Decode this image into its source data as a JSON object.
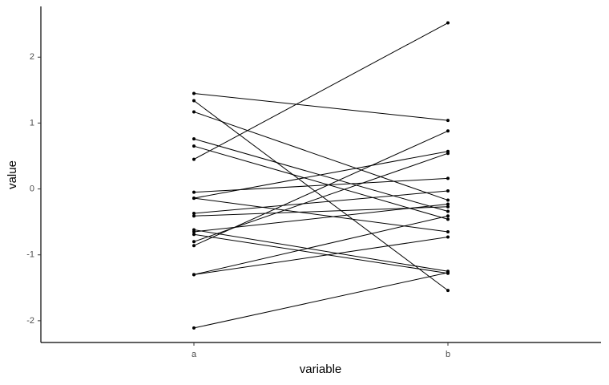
{
  "chart_data": {
    "type": "slope",
    "x_label": "variable",
    "y_label": "value",
    "categories": [
      "a",
      "b"
    ],
    "color": "#000000",
    "ylim": [
      -2.33,
      2.77
    ],
    "yticks": [
      -2,
      -1,
      0,
      1,
      2
    ],
    "grid": false,
    "series": [
      {
        "values": [
          1.45,
          1.04
        ]
      },
      {
        "values": [
          1.34,
          -1.54
        ]
      },
      {
        "values": [
          1.17,
          -0.17
        ]
      },
      {
        "values": [
          0.76,
          -0.34
        ]
      },
      {
        "values": [
          0.65,
          -0.46
        ]
      },
      {
        "values": [
          0.45,
          2.52
        ]
      },
      {
        "values": [
          -0.05,
          0.16
        ]
      },
      {
        "values": [
          -0.14,
          0.57
        ]
      },
      {
        "values": [
          -0.14,
          -0.65
        ]
      },
      {
        "values": [
          -0.37,
          -0.03
        ]
      },
      {
        "values": [
          -0.41,
          -0.27
        ]
      },
      {
        "values": [
          -0.62,
          -1.25
        ]
      },
      {
        "values": [
          -0.65,
          -0.23
        ]
      },
      {
        "values": [
          -0.69,
          -1.28
        ]
      },
      {
        "values": [
          -0.8,
          0.54
        ]
      },
      {
        "values": [
          -0.86,
          0.88
        ]
      },
      {
        "values": [
          -1.3,
          -0.41
        ]
      },
      {
        "values": [
          -1.3,
          -0.73
        ]
      },
      {
        "values": [
          -2.11,
          -1.27
        ]
      }
    ]
  }
}
